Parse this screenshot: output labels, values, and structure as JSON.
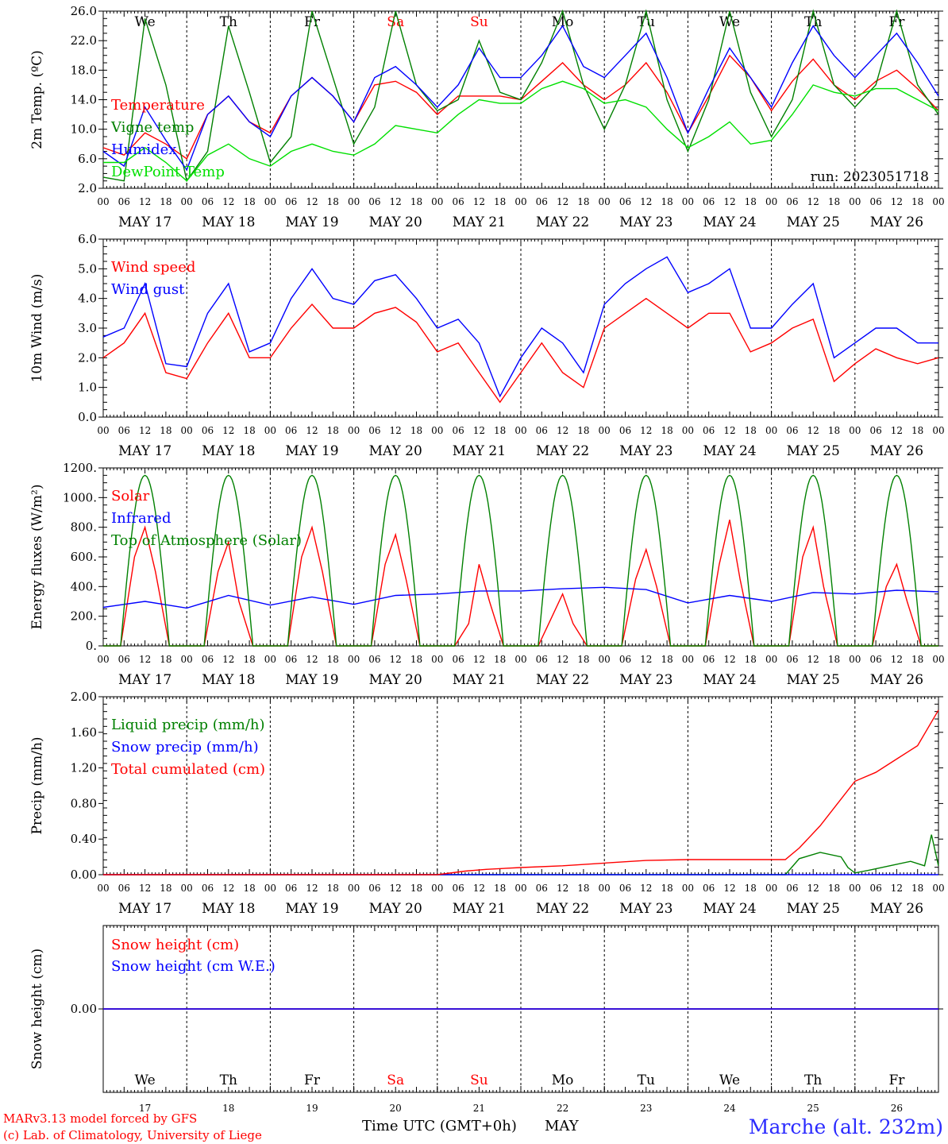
{
  "chart_data": [
    {
      "type": "line",
      "ylabel": "2m Temp. (ºC)",
      "ylim": [
        2.0,
        26.0
      ],
      "yticks": [
        "2.0",
        "6.0",
        "10.0",
        "14.0",
        "18.0",
        "22.0",
        "26.0"
      ],
      "ytick_values": [
        2,
        6,
        10,
        14,
        18,
        22,
        26
      ],
      "x_unit": "hours since MAY 17 00 UTC",
      "xlim": [
        0,
        240
      ],
      "grid": "vertical dashed day separators",
      "run_label": "run: 2023051718",
      "series": [
        {
          "name": "Temperature",
          "color": "#ff0000",
          "x": [
            0,
            6,
            12,
            18,
            24,
            30,
            36,
            42,
            48,
            54,
            60,
            66,
            72,
            78,
            84,
            90,
            96,
            102,
            108,
            114,
            120,
            126,
            132,
            138,
            144,
            150,
            156,
            162,
            168,
            174,
            180,
            186,
            192,
            198,
            204,
            210,
            216,
            222,
            228,
            234,
            240
          ],
          "values": [
            7.5,
            6.5,
            9.5,
            8.0,
            6.0,
            12.0,
            14.5,
            11.0,
            9.5,
            14.5,
            17.0,
            14.5,
            11.0,
            16.0,
            16.5,
            15.0,
            12.0,
            14.5,
            14.5,
            14.5,
            14.0,
            16.5,
            19.0,
            16.0,
            14.0,
            16.0,
            19.0,
            15.0,
            9.5,
            14.5,
            20.0,
            17.0,
            12.5,
            16.5,
            19.5,
            16.0,
            14.0,
            16.5,
            18.0,
            15.5,
            12.5
          ]
        },
        {
          "name": "Vigne temp",
          "color": "#008000",
          "x": [
            0,
            6,
            12,
            18,
            24,
            30,
            36,
            42,
            48,
            54,
            60,
            66,
            72,
            78,
            84,
            90,
            96,
            102,
            108,
            114,
            120,
            126,
            132,
            138,
            144,
            150,
            156,
            162,
            168,
            174,
            180,
            186,
            192,
            198,
            204,
            210,
            216,
            222,
            228,
            234,
            240
          ],
          "values": [
            3.5,
            3.0,
            25.0,
            16.0,
            3.0,
            7.0,
            24.0,
            15.0,
            5.5,
            9.0,
            26.0,
            17.0,
            8.0,
            13.0,
            26.0,
            16.0,
            12.5,
            14.0,
            22.0,
            15.0,
            14.0,
            19.0,
            26.0,
            16.0,
            10.0,
            16.0,
            26.0,
            14.0,
            7.0,
            14.0,
            26.0,
            15.0,
            9.0,
            14.0,
            26.0,
            16.0,
            13.0,
            16.0,
            26.0,
            16.0,
            12.0
          ]
        },
        {
          "name": "Humidex",
          "color": "#0000ff",
          "x": [
            0,
            6,
            12,
            18,
            24,
            30,
            36,
            42,
            48,
            54,
            60,
            66,
            72,
            78,
            84,
            90,
            96,
            102,
            108,
            114,
            120,
            126,
            132,
            138,
            144,
            150,
            156,
            162,
            168,
            174,
            180,
            186,
            192,
            198,
            204,
            210,
            216,
            222,
            228,
            234,
            240
          ],
          "values": [
            7.0,
            5.0,
            13.0,
            8.5,
            4.5,
            12.0,
            14.5,
            11.0,
            9.0,
            14.5,
            17.0,
            14.5,
            11.0,
            17.0,
            18.5,
            16.0,
            13.0,
            16.0,
            21.0,
            17.0,
            17.0,
            20.0,
            24.0,
            18.5,
            17.0,
            20.0,
            23.0,
            17.0,
            9.5,
            15.5,
            21.0,
            17.0,
            13.0,
            19.0,
            24.0,
            20.0,
            17.0,
            20.0,
            23.0,
            19.0,
            14.5
          ]
        },
        {
          "name": "DewPoint Temp",
          "color": "#00e000",
          "x": [
            0,
            6,
            12,
            18,
            24,
            30,
            36,
            42,
            48,
            54,
            60,
            66,
            72,
            78,
            84,
            90,
            96,
            102,
            108,
            114,
            120,
            126,
            132,
            138,
            144,
            150,
            156,
            162,
            168,
            174,
            180,
            186,
            192,
            198,
            204,
            210,
            216,
            222,
            228,
            234,
            240
          ],
          "values": [
            5.5,
            5.5,
            7.5,
            5.5,
            3.0,
            6.5,
            8.0,
            6.0,
            5.0,
            7.0,
            8.0,
            7.0,
            6.5,
            8.0,
            10.5,
            10.0,
            9.5,
            12.0,
            14.0,
            13.5,
            13.5,
            15.5,
            16.5,
            15.5,
            13.5,
            14.0,
            13.0,
            10.0,
            7.5,
            9.0,
            11.0,
            8.0,
            8.5,
            12.0,
            16.0,
            15.0,
            14.5,
            15.5,
            15.5,
            14.0,
            12.5
          ]
        }
      ]
    },
    {
      "type": "line",
      "ylabel": "10m Wind (m/s)",
      "ylim": [
        0.0,
        6.0
      ],
      "yticks": [
        "0.0",
        "1.0",
        "2.0",
        "3.0",
        "4.0",
        "5.0",
        "6.0"
      ],
      "ytick_values": [
        0,
        1,
        2,
        3,
        4,
        5,
        6
      ],
      "x_unit": "hours since MAY 17 00 UTC",
      "xlim": [
        0,
        240
      ],
      "series": [
        {
          "name": "Wind speed",
          "color": "#ff0000",
          "x": [
            0,
            6,
            12,
            18,
            24,
            30,
            36,
            42,
            48,
            54,
            60,
            66,
            72,
            78,
            84,
            90,
            96,
            102,
            108,
            114,
            120,
            126,
            132,
            138,
            144,
            150,
            156,
            162,
            168,
            174,
            180,
            186,
            192,
            198,
            204,
            210,
            216,
            222,
            228,
            234,
            240
          ],
          "values": [
            2.0,
            2.5,
            3.5,
            1.5,
            1.3,
            2.5,
            3.5,
            2.0,
            2.0,
            3.0,
            3.8,
            3.0,
            3.0,
            3.5,
            3.7,
            3.2,
            2.2,
            2.5,
            1.5,
            0.5,
            1.5,
            2.5,
            1.5,
            1.0,
            3.0,
            3.5,
            4.0,
            3.5,
            3.0,
            3.5,
            3.5,
            2.2,
            2.5,
            3.0,
            3.3,
            1.2,
            1.8,
            2.3,
            2.0,
            1.8,
            2.0
          ]
        },
        {
          "name": "Wind gust",
          "color": "#0000ff",
          "x": [
            0,
            6,
            12,
            18,
            24,
            30,
            36,
            42,
            48,
            54,
            60,
            66,
            72,
            78,
            84,
            90,
            96,
            102,
            108,
            114,
            120,
            126,
            132,
            138,
            144,
            150,
            156,
            162,
            168,
            174,
            180,
            186,
            192,
            198,
            204,
            210,
            216,
            222,
            228,
            234,
            240
          ],
          "values": [
            2.7,
            3.0,
            4.5,
            1.8,
            1.7,
            3.5,
            4.5,
            2.2,
            2.5,
            4.0,
            5.0,
            4.0,
            3.8,
            4.6,
            4.8,
            4.0,
            3.0,
            3.3,
            2.5,
            0.7,
            2.0,
            3.0,
            2.5,
            1.5,
            3.8,
            4.5,
            5.0,
            5.4,
            4.2,
            4.5,
            5.0,
            3.0,
            3.0,
            3.8,
            4.5,
            2.0,
            2.5,
            3.0,
            3.0,
            2.5,
            2.5
          ]
        }
      ]
    },
    {
      "type": "line",
      "ylabel": "Energy fluxes (W/m²)",
      "ylim": [
        0,
        1200
      ],
      "yticks": [
        "0.",
        "200.",
        "400.",
        "600.",
        "800.",
        "1000.",
        "1200."
      ],
      "ytick_values": [
        0,
        200,
        400,
        600,
        800,
        1000,
        1200
      ],
      "x_unit": "hours since MAY 17 00 UTC",
      "xlim": [
        0,
        240
      ],
      "series": [
        {
          "name": "Solar",
          "color": "#ff0000",
          "x": [
            0,
            5,
            9,
            12,
            15,
            19,
            24,
            29,
            33,
            36,
            39,
            43,
            48,
            53,
            57,
            60,
            63,
            67,
            72,
            77,
            81,
            84,
            87,
            91,
            96,
            101,
            105,
            108,
            111,
            115,
            120,
            125,
            129,
            132,
            135,
            139,
            144,
            149,
            153,
            156,
            159,
            163,
            168,
            173,
            177,
            180,
            183,
            187,
            192,
            197,
            201,
            204,
            207,
            211,
            216,
            221,
            225,
            228,
            231,
            235,
            240
          ],
          "values": [
            0,
            0,
            600,
            800,
            500,
            0,
            0,
            0,
            500,
            700,
            300,
            0,
            0,
            0,
            600,
            800,
            500,
            0,
            0,
            0,
            550,
            750,
            450,
            0,
            0,
            0,
            150,
            550,
            300,
            0,
            0,
            0,
            200,
            350,
            150,
            0,
            0,
            0,
            450,
            650,
            400,
            0,
            0,
            0,
            550,
            850,
            450,
            0,
            0,
            0,
            600,
            800,
            400,
            0,
            0,
            0,
            400,
            550,
            300,
            0,
            0
          ]
        },
        {
          "name": "Infrared",
          "color": "#0000ff",
          "x": [
            0,
            12,
            24,
            36,
            48,
            60,
            72,
            84,
            96,
            108,
            120,
            132,
            144,
            156,
            168,
            180,
            192,
            204,
            216,
            228,
            240
          ],
          "values": [
            260,
            300,
            255,
            340,
            275,
            330,
            280,
            340,
            350,
            370,
            370,
            385,
            395,
            380,
            290,
            340,
            300,
            360,
            350,
            375,
            365
          ]
        },
        {
          "name": "Top of Atmosphere (Solar)",
          "color": "#008000",
          "diurnal_peak": 1150,
          "daylight_hours": [
            5.0,
            19.0
          ]
        }
      ]
    },
    {
      "type": "line",
      "ylabel": "Precip (mm/h)",
      "ylim": [
        0.0,
        2.0
      ],
      "yticks": [
        "0.00",
        "0.40",
        "0.80",
        "1.20",
        "1.60",
        "2.00"
      ],
      "ytick_values": [
        0,
        0.4,
        0.8,
        1.2,
        1.6,
        2.0
      ],
      "x_unit": "hours since MAY 17 00 UTC",
      "xlim": [
        0,
        240
      ],
      "series": [
        {
          "name": "Liquid precip (mm/h)",
          "color": "#008000",
          "x": [
            0,
            120,
            180,
            196,
            200,
            206,
            212,
            214,
            216,
            220,
            226,
            232,
            236,
            238,
            240
          ],
          "values": [
            0,
            0,
            0,
            0,
            0.18,
            0.25,
            0.2,
            0.08,
            0.02,
            0.05,
            0.1,
            0.15,
            0.1,
            0.45,
            0.1
          ]
        },
        {
          "name": "Snow precip (mm/h)",
          "color": "#0000ff",
          "x": [
            0,
            240
          ],
          "values": [
            0,
            0
          ]
        },
        {
          "name": "Total cumulated (cm)",
          "color": "#ff0000",
          "x": [
            0,
            96,
            104,
            110,
            120,
            132,
            144,
            156,
            168,
            180,
            192,
            196,
            200,
            206,
            212,
            216,
            222,
            228,
            234,
            240
          ],
          "values": [
            0,
            0,
            0.04,
            0.06,
            0.08,
            0.1,
            0.13,
            0.16,
            0.17,
            0.17,
            0.17,
            0.17,
            0.3,
            0.55,
            0.85,
            1.05,
            1.15,
            1.3,
            1.45,
            1.85
          ]
        }
      ]
    },
    {
      "type": "line",
      "ylabel": "Snow height (cm)",
      "yticks": [
        "0.00"
      ],
      "ytick_values": [
        0
      ],
      "x_unit": "hours since MAY 17 00 UTC",
      "xlim": [
        0,
        240
      ],
      "series": [
        {
          "name": "Snow height (cm)",
          "color": "#ff0000",
          "x": [
            0,
            240
          ],
          "values": [
            0,
            0
          ]
        },
        {
          "name": "Snow height (cm W.E.)",
          "color": "#0000ff",
          "x": [
            0,
            240
          ],
          "values": [
            0,
            0
          ]
        }
      ]
    }
  ],
  "axis": {
    "hour_labels": [
      "00",
      "06",
      "12",
      "18"
    ],
    "end_hour_label": "00",
    "date_labels": [
      "MAY 17",
      "MAY 18",
      "MAY 19",
      "MAY 20",
      "MAY 21",
      "MAY 22",
      "MAY 23",
      "MAY 24",
      "MAY 25",
      "MAY 26"
    ],
    "weekdays": [
      "We",
      "Th",
      "Fr",
      "Sa",
      "Su",
      "Mo",
      "Tu",
      "We",
      "Th",
      "Fr"
    ],
    "weekend_color": "#ff0000",
    "weekday_color": "#000000",
    "weekend_days": [
      "Sa",
      "Su"
    ],
    "day_numbers": [
      "17",
      "18",
      "19",
      "20",
      "21",
      "22",
      "23",
      "24",
      "25",
      "26"
    ]
  },
  "footer": {
    "model_line": "MARv3.13 model forced by GFS",
    "credit_line": "(c) Lab. of Climatology, University of Liege",
    "xaxis_title": "Time UTC (GMT+0h)",
    "month": "MAY",
    "station": "Marche (alt. 232m)"
  },
  "colors": {
    "red": "#ff0000",
    "green": "#008000",
    "blue": "#0000ff",
    "lightgreen": "#00e000",
    "purple": "#800080"
  }
}
